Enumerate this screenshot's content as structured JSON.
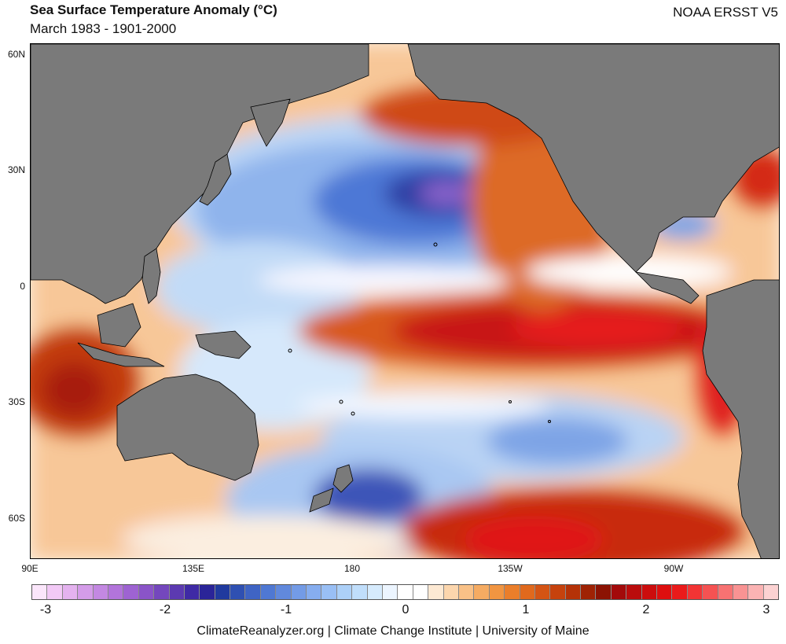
{
  "header": {
    "title": "Sea Surface Temperature Anomaly (°C)",
    "subtitle": "March 1983 - 1901-2000",
    "dataset": "NOAA ERSST V5"
  },
  "map": {
    "region": "Pacific Ocean",
    "lat_labels": [
      "60N",
      "30N",
      "0",
      "30S",
      "60S"
    ],
    "lon_labels": [
      "90E",
      "135E",
      "180",
      "135W",
      "90W"
    ],
    "colors": {
      "land": "#7a7a7a",
      "sea_neutral": "#ffffff",
      "warm_light": "#f6a24a",
      "warm_mid": "#d9531c",
      "warm_strong": "#c80e0e",
      "cool_light": "#a9cdf5",
      "cool_mid": "#5a86e0",
      "cool_strong": "#2a3a9e",
      "cool_extreme": "#7c5cd1"
    }
  },
  "colorbar": {
    "labels": [
      "-3",
      "-2",
      "-1",
      "0",
      "1",
      "2",
      "3"
    ],
    "colors": [
      "#fbe6fb",
      "#f2c9f6",
      "#e4b2ef",
      "#d49ce9",
      "#c388e2",
      "#b274db",
      "#9e63d2",
      "#8a54c8",
      "#7447bd",
      "#5c3ab1",
      "#3f2aa5",
      "#2a2498",
      "#203a9e",
      "#2f50b2",
      "#3f64c4",
      "#4f78d3",
      "#6189dd",
      "#739be6",
      "#86adef",
      "#99bff5",
      "#acd0f8",
      "#c0defb",
      "#d6ebfd",
      "#ecf5ff",
      "#ffffff",
      "#ffffff",
      "#fde9d3",
      "#fcd6ad",
      "#f9c187",
      "#f5ab62",
      "#f19541",
      "#ea7e2a",
      "#e0691d",
      "#d45414",
      "#c6420d",
      "#b53207",
      "#9f2204",
      "#8c1303",
      "#a30a0a",
      "#ba0c0c",
      "#cc0d0d",
      "#dd0f0f",
      "#ea1a1a",
      "#f23434",
      "#f55252",
      "#f77272",
      "#f99393",
      "#fbb3b3",
      "#fcd2d2"
    ]
  },
  "footer": {
    "credit": "ClimateReanalyzer.org | Climate Change Institute | University of Maine"
  }
}
